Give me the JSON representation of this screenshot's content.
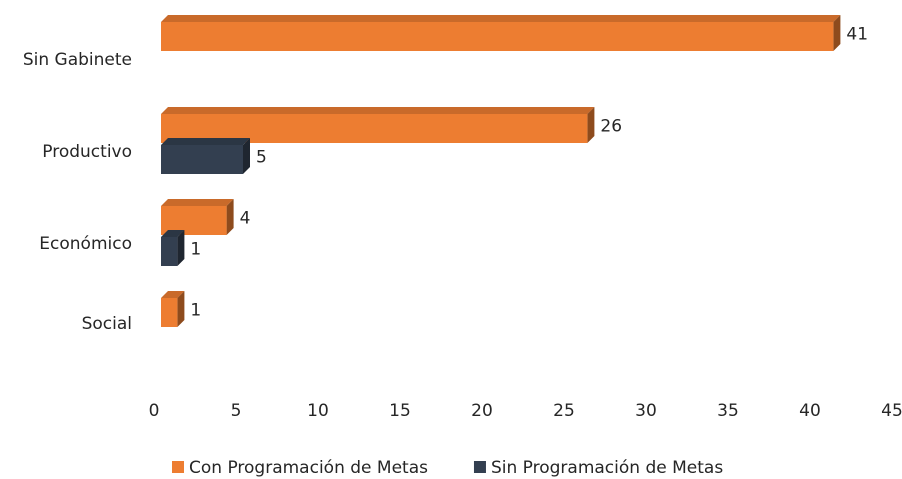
{
  "chart_data": {
    "type": "bar",
    "orientation": "horizontal",
    "categories": [
      "Sin Gabinete",
      "Productivo",
      "Económico",
      "Social"
    ],
    "series": [
      {
        "name": "Con Programación de Metas",
        "color": "#ED7D31",
        "values": [
          41,
          26,
          4,
          1
        ]
      },
      {
        "name": "Sin Programación de Metas",
        "color": "#333F50",
        "values": [
          null,
          5,
          1,
          null
        ]
      }
    ],
    "xlim": [
      0,
      45
    ],
    "xticks": [
      0,
      5,
      10,
      15,
      20,
      25,
      30,
      35,
      40,
      45
    ],
    "legend": "bottom",
    "grid": false
  }
}
